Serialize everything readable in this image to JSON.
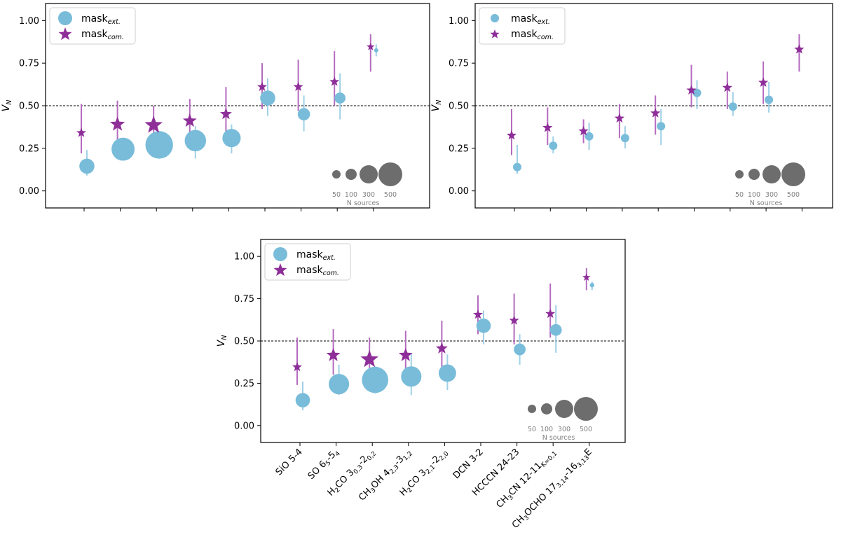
{
  "chart_data": [
    {
      "type": "scatter",
      "panel": "top-left",
      "ylabel_main": "V",
      "ylabel_sub": "N",
      "ylim": [
        -0.1,
        1.1
      ],
      "yticks": [
        "0.00",
        "0.25",
        "0.50",
        "0.75",
        "1.00"
      ],
      "ytick_values": [
        0,
        0.25,
        0.5,
        0.75,
        1.0
      ],
      "reference_line": 0.5,
      "legend": {
        "placement": "top-left",
        "entries": [
          {
            "main": "mask",
            "sub": "ext."
          },
          {
            "main": "mask",
            "sub": "com."
          }
        ]
      },
      "size_legend": {
        "values": [
          50,
          100,
          300,
          500
        ],
        "labels": [
          "50",
          "100",
          "300",
          "500"
        ],
        "title": "N sources"
      },
      "series": [
        {
          "name": "mask_ext.",
          "marker": "circle",
          "color": "#78bcda",
          "values": [
            0.145,
            0.245,
            0.27,
            0.295,
            0.31,
            0.545,
            0.45,
            0.545,
            0.825
          ],
          "err_low": [
            0.09,
            0.19,
            0.19,
            0.19,
            0.22,
            0.44,
            0.35,
            0.42,
            0.79
          ],
          "err_high": [
            0.24,
            0.3,
            0.33,
            0.38,
            0.39,
            0.66,
            0.56,
            0.69,
            0.86
          ],
          "n_sources": [
            150,
            350,
            500,
            300,
            220,
            150,
            100,
            80,
            10
          ]
        },
        {
          "name": "mask_com.",
          "marker": "star",
          "color": "#8e2e99",
          "values": [
            0.345,
            0.395,
            0.39,
            0.415,
            0.455,
            0.615,
            0.615,
            0.645,
            0.85
          ],
          "err_low": [
            0.22,
            0.28,
            0.28,
            0.3,
            0.33,
            0.48,
            0.47,
            0.5,
            0.7
          ],
          "err_high": [
            0.51,
            0.53,
            0.5,
            0.54,
            0.61,
            0.75,
            0.77,
            0.82,
            0.92
          ],
          "n_sources": [
            150,
            350,
            500,
            300,
            220,
            150,
            150,
            150,
            80
          ]
        }
      ]
    },
    {
      "type": "scatter",
      "panel": "top-right",
      "ylabel_main": "V",
      "ylabel_sub": "N",
      "ylim": [
        -0.1,
        1.1
      ],
      "yticks": [
        "0.00",
        "0.25",
        "0.50",
        "0.75",
        "1.00"
      ],
      "ytick_values": [
        0,
        0.25,
        0.5,
        0.75,
        1.0
      ],
      "reference_line": 0.5,
      "legend": {
        "placement": "top-left",
        "entries": [
          {
            "main": "mask",
            "sub": "ext."
          },
          {
            "main": "mask",
            "sub": "com."
          }
        ]
      },
      "size_legend": {
        "values": [
          50,
          100,
          300,
          500
        ],
        "labels": [
          "50",
          "100",
          "300",
          "500"
        ],
        "title": "N sources"
      },
      "series": [
        {
          "name": "mask_ext.",
          "marker": "circle",
          "color": "#78bcda",
          "values": [
            0.14,
            0.265,
            0.32,
            0.31,
            0.38,
            0.575,
            0.495,
            0.535
          ],
          "err_low": [
            0.1,
            0.22,
            0.24,
            0.25,
            0.27,
            0.48,
            0.44,
            0.46
          ],
          "err_high": [
            0.27,
            0.32,
            0.4,
            0.38,
            0.48,
            0.65,
            0.58,
            0.64
          ],
          "n_sources": [
            60,
            60,
            60,
            60,
            60,
            60,
            60,
            60
          ]
        },
        {
          "name": "mask_com.",
          "marker": "star",
          "color": "#8e2e99",
          "values": [
            0.33,
            0.375,
            0.355,
            0.43,
            0.46,
            0.595,
            0.61,
            0.64,
            0.835
          ],
          "err_low": [
            0.21,
            0.27,
            0.28,
            0.31,
            0.33,
            0.49,
            0.48,
            0.51,
            0.7
          ],
          "err_high": [
            0.48,
            0.49,
            0.42,
            0.51,
            0.56,
            0.74,
            0.7,
            0.76,
            0.92
          ],
          "n_sources": [
            60,
            60,
            60,
            60,
            60,
            60,
            60,
            60,
            60
          ]
        }
      ]
    },
    {
      "type": "scatter",
      "panel": "bottom",
      "ylabel_main": "V",
      "ylabel_sub": "N",
      "ylim": [
        -0.1,
        1.1
      ],
      "yticks": [
        "0.00",
        "0.25",
        "0.50",
        "0.75",
        "1.00"
      ],
      "ytick_values": [
        0,
        0.25,
        0.5,
        0.75,
        1.0
      ],
      "reference_line": 0.5,
      "legend": {
        "placement": "top-left",
        "entries": [
          {
            "main": "mask",
            "sub": "ext."
          },
          {
            "main": "mask",
            "sub": "com."
          }
        ]
      },
      "size_legend": {
        "values": [
          50,
          100,
          300,
          500
        ],
        "labels": [
          "50",
          "100",
          "300",
          "500"
        ],
        "title": "N sources"
      },
      "categories": [
        [
          {
            "t": "SiO 5-4"
          }
        ],
        [
          {
            "t": "SO 6"
          },
          {
            "t": "5",
            "s": "sub"
          },
          {
            "t": "-5"
          },
          {
            "t": "4",
            "s": "sub"
          }
        ],
        [
          {
            "t": "H"
          },
          {
            "t": "2",
            "s": "sub"
          },
          {
            "t": "CO 3"
          },
          {
            "t": "0,3",
            "s": "sub"
          },
          {
            "t": "-2"
          },
          {
            "t": "0,2",
            "s": "sub"
          }
        ],
        [
          {
            "t": "CH"
          },
          {
            "t": "3",
            "s": "sub"
          },
          {
            "t": "OH 4"
          },
          {
            "t": "2,3",
            "s": "sub"
          },
          {
            "t": "-3"
          },
          {
            "t": "1,2",
            "s": "sub"
          }
        ],
        [
          {
            "t": "H"
          },
          {
            "t": "2",
            "s": "sub"
          },
          {
            "t": "CO 3"
          },
          {
            "t": "2,1",
            "s": "sub"
          },
          {
            "t": "-2"
          },
          {
            "t": "2,0",
            "s": "sub"
          }
        ],
        [
          {
            "t": "DCN 3-2"
          }
        ],
        [
          {
            "t": "HCCCN 24-23"
          }
        ],
        [
          {
            "t": "CH"
          },
          {
            "t": "3",
            "s": "sub"
          },
          {
            "t": "CN 12-11"
          },
          {
            "t": "K=0,1",
            "s": "sub"
          }
        ],
        [
          {
            "t": "CH"
          },
          {
            "t": "3",
            "s": "sub"
          },
          {
            "t": "OCHO 17"
          },
          {
            "t": "3,14",
            "s": "sub"
          },
          {
            "t": "-16"
          },
          {
            "t": "3,13",
            "s": "sub"
          },
          {
            "t": "E"
          }
        ]
      ],
      "series": [
        {
          "name": "mask_ext.",
          "marker": "circle",
          "color": "#78bcda",
          "values": [
            0.15,
            0.245,
            0.27,
            0.29,
            0.31,
            0.59,
            0.45,
            0.565,
            0.83
          ],
          "err_low": [
            0.09,
            0.18,
            0.19,
            0.18,
            0.21,
            0.48,
            0.36,
            0.43,
            0.8
          ],
          "err_high": [
            0.26,
            0.36,
            0.35,
            0.43,
            0.42,
            0.68,
            0.54,
            0.71,
            0.85
          ],
          "n_sources": [
            150,
            300,
            500,
            300,
            220,
            150,
            100,
            100,
            15
          ]
        },
        {
          "name": "mask_com.",
          "marker": "star",
          "color": "#8e2e99",
          "values": [
            0.35,
            0.42,
            0.395,
            0.42,
            0.46,
            0.66,
            0.625,
            0.665,
            0.88
          ],
          "err_low": [
            0.24,
            0.3,
            0.3,
            0.31,
            0.34,
            0.54,
            0.48,
            0.52,
            0.8
          ],
          "err_high": [
            0.52,
            0.57,
            0.52,
            0.56,
            0.62,
            0.77,
            0.78,
            0.84,
            0.93
          ],
          "n_sources": [
            150,
            300,
            500,
            300,
            220,
            150,
            150,
            150,
            60
          ]
        }
      ]
    }
  ]
}
